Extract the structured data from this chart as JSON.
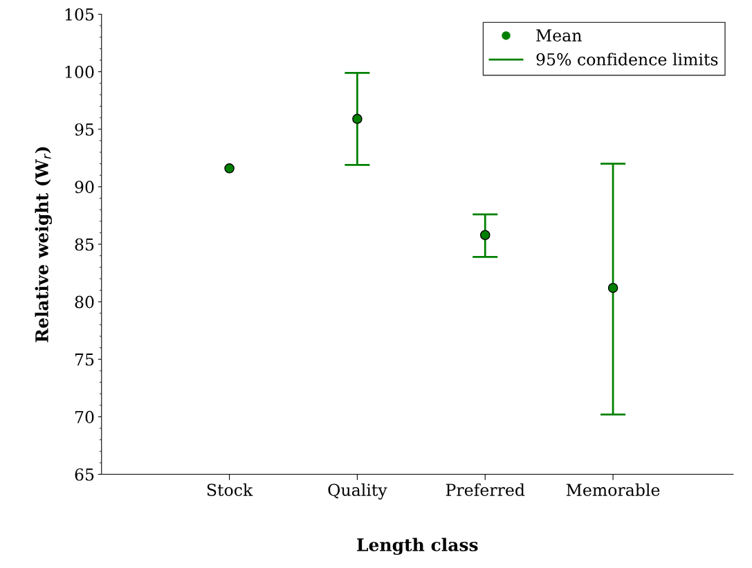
{
  "chart_data": {
    "type": "scatter",
    "xlabel": "Length class",
    "ylabel": "Relative weight (W$_{r}$)",
    "categories": [
      "Stock",
      "Quality",
      "Preferred",
      "Memorable"
    ],
    "series": [
      {
        "name": "Mean",
        "color": "#008000",
        "values": [
          91.6,
          95.9,
          85.8,
          81.2
        ],
        "errors": [
          null,
          [
            91.9,
            99.9
          ],
          [
            83.9,
            87.6
          ],
          [
            70.2,
            92.0
          ]
        ]
      }
    ],
    "annotations": [
      "95% confidence limits"
    ],
    "ylim": [
      65,
      105
    ],
    "yticks": [
      65,
      70,
      75,
      80,
      85,
      90,
      95,
      100,
      105
    ],
    "grid": false,
    "legend": "top right",
    "marker": "circle"
  }
}
